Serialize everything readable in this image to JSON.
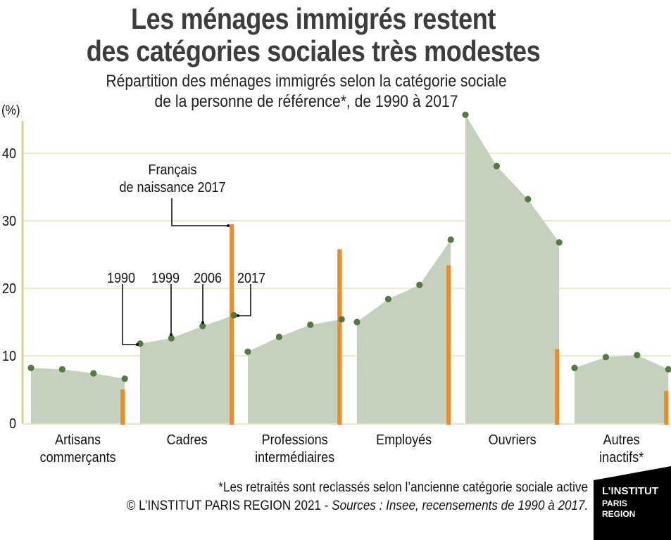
{
  "header": {
    "title_line1": "Les ménages immigrés restent",
    "title_line2": "des catégories sociales très modestes",
    "subtitle_line1": "Répartition des ménages immigrés selon la catégorie sociale",
    "subtitle_line2": "de la personne de référence*, de 1990 à 2017"
  },
  "footer": {
    "note": "*Les retraités sont reclassés selon l’ancienne catégorie sociale active",
    "credit": "© L’INSTITUT PARIS REGION 2021 - ",
    "sources": "Sources : Insee, recensements de 1990 à 2017."
  },
  "logo": {
    "line1": "L’INSTITUT",
    "line2": "PARIS",
    "line3": "REGION"
  },
  "colors": {
    "area": "#c5d1bd",
    "dot": "#547a42",
    "bar": "#f08a24",
    "grid": "#e9e2b8",
    "axis": "#d9cf8e"
  },
  "chart_data": {
    "type": "area",
    "ylabel": "(%)",
    "ylim": [
      0,
      45
    ],
    "yticks": [
      0,
      10,
      20,
      30,
      40
    ],
    "grid": true,
    "years": [
      "1990",
      "1999",
      "2006",
      "2017"
    ],
    "categories": [
      {
        "label": [
          "Artisans",
          "commerçants"
        ],
        "immigres": [
          8.2,
          8.0,
          7.4,
          6.6
        ],
        "francais_2017": 5.0
      },
      {
        "label": [
          "Cadres"
        ],
        "immigres": [
          11.8,
          12.6,
          14.4,
          16.0
        ],
        "francais_2017": 29.5
      },
      {
        "label": [
          "Professions",
          "intermédiaires"
        ],
        "immigres": [
          10.6,
          12.8,
          14.6,
          15.4
        ],
        "francais_2017": 25.8
      },
      {
        "label": [
          "Employés"
        ],
        "immigres": [
          15.0,
          18.4,
          20.5,
          27.2
        ],
        "francais_2017": 23.4
      },
      {
        "label": [
          "Ouvriers"
        ],
        "immigres": [
          45.7,
          38.1,
          33.2,
          26.8
        ],
        "francais_2017": 11.0
      },
      {
        "label": [
          "Autres",
          "inactifs*"
        ],
        "immigres": [
          8.2,
          9.8,
          10.1,
          8.0
        ],
        "francais_2017": 4.8
      }
    ],
    "annotations": {
      "francais": [
        "Français",
        "de naissance 2017"
      ],
      "year_labels": [
        "1990",
        "1999",
        "2006",
        "2017"
      ]
    }
  }
}
